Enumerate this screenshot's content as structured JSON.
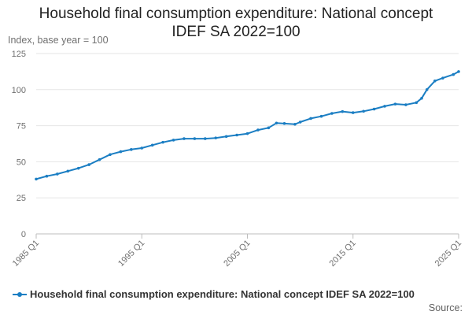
{
  "chart_data": {
    "type": "line",
    "title_line1": "Household final consumption expenditure: National concept",
    "title_line2": "IDEF SA 2022=100",
    "ylabel": "Index, base year = 100",
    "ylim": [
      0,
      125
    ],
    "yticks": [
      0,
      25,
      50,
      75,
      100,
      125
    ],
    "xrange": [
      1985.0,
      2025.0
    ],
    "xticks": [
      {
        "label": "1985 Q1",
        "value": 1985.0
      },
      {
        "label": "1995 Q1",
        "value": 1995.0
      },
      {
        "label": "2005 Q1",
        "value": 2005.0
      },
      {
        "label": "2015 Q1",
        "value": 2015.0
      },
      {
        "label": "2025 Q1",
        "value": 2025.0
      }
    ],
    "grid": true,
    "legend_position": "bottom-left",
    "series": [
      {
        "name": "Household final consumption expenditure: National concept IDEF SA 2022=100",
        "color": "#1b7ec3",
        "points": [
          [
            1985.0,
            38.0
          ],
          [
            1986.0,
            40.0
          ],
          [
            1987.0,
            41.5
          ],
          [
            1988.0,
            43.5
          ],
          [
            1989.0,
            45.5
          ],
          [
            1990.0,
            48.0
          ],
          [
            1991.0,
            51.5
          ],
          [
            1992.0,
            55.0
          ],
          [
            1993.0,
            57.0
          ],
          [
            1994.0,
            58.5
          ],
          [
            1995.0,
            59.5
          ],
          [
            1996.0,
            61.5
          ],
          [
            1997.0,
            63.5
          ],
          [
            1998.0,
            65.0
          ],
          [
            1999.0,
            66.0
          ],
          [
            2000.0,
            66.0
          ],
          [
            2001.0,
            66.0
          ],
          [
            2002.0,
            66.5
          ],
          [
            2003.0,
            67.5
          ],
          [
            2004.0,
            68.5
          ],
          [
            2005.0,
            69.5
          ],
          [
            2006.0,
            72.0
          ],
          [
            2007.0,
            73.5
          ],
          [
            2007.75,
            76.8
          ],
          [
            2008.5,
            76.5
          ],
          [
            2009.5,
            76.0
          ],
          [
            2010.0,
            77.5
          ],
          [
            2011.0,
            80.0
          ],
          [
            2012.0,
            81.5
          ],
          [
            2013.0,
            83.5
          ],
          [
            2014.0,
            84.8
          ],
          [
            2015.0,
            84.0
          ],
          [
            2016.0,
            85.0
          ],
          [
            2017.0,
            86.5
          ],
          [
            2018.0,
            88.5
          ],
          [
            2019.0,
            90.0
          ],
          [
            2020.0,
            89.5
          ],
          [
            2021.0,
            91.0
          ],
          [
            2021.5,
            94.0
          ],
          [
            2022.0,
            100.0
          ],
          [
            2022.75,
            106.0
          ],
          [
            2023.5,
            108.0
          ],
          [
            2024.5,
            110.5
          ],
          [
            2025.0,
            112.5
          ]
        ]
      }
    ]
  },
  "source_label": "Source:"
}
